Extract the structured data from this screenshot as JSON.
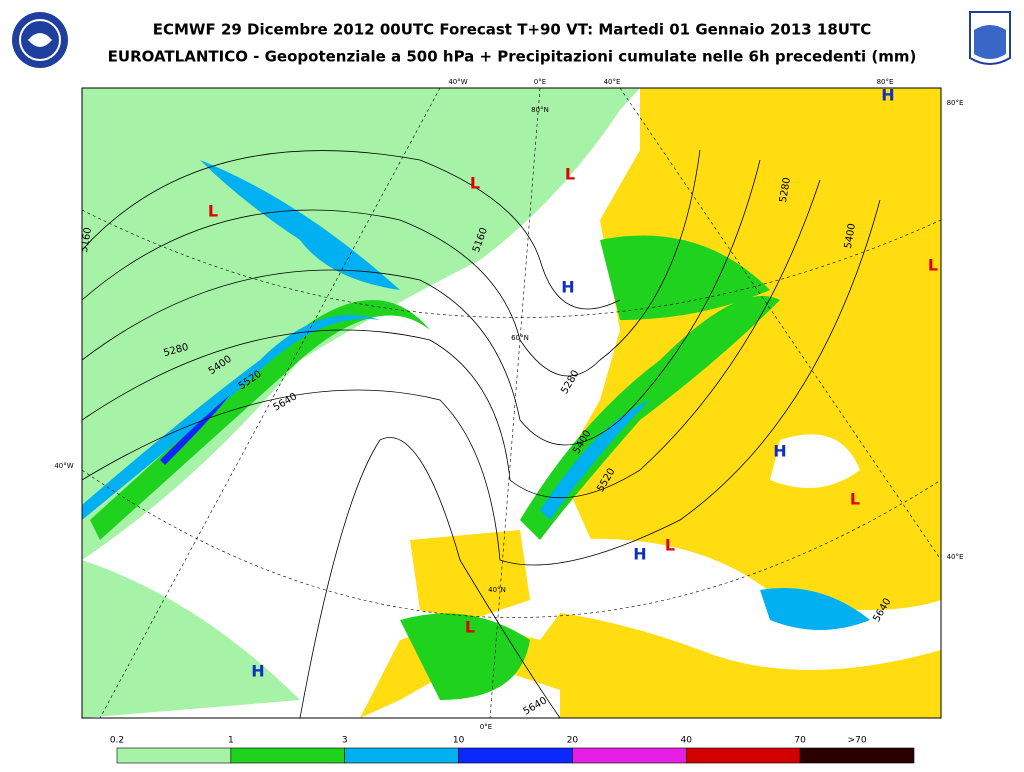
{
  "header": {
    "title": "ECMWF 29 Dicembre 2012 00UTC Forecast T+90 VT: Martedi 01 Gennaio 2013 18UTC",
    "subtitle": "EUROATLANTICO - Geopotenziale a 500 hPa + Precipitazioni cumulate nelle 6h precedenti (mm)"
  },
  "map": {
    "graticule_labels": [
      "40°W",
      "0°E",
      "40°E",
      "80°E",
      "80°E",
      "40°W",
      "40°E",
      "0°E",
      "80°N",
      "60°N",
      "40°N"
    ],
    "pressure_centers": [
      {
        "label": "L",
        "color": "#e00000"
      },
      {
        "label": "L",
        "color": "#e00000"
      },
      {
        "label": "L",
        "color": "#e00000"
      },
      {
        "label": "H",
        "color": "#1030c0"
      },
      {
        "label": "H",
        "color": "#1030c0"
      },
      {
        "label": "L",
        "color": "#e00000"
      },
      {
        "label": "H",
        "color": "#1030c0"
      },
      {
        "label": "L",
        "color": "#e00000"
      },
      {
        "label": "H",
        "color": "#1030c0"
      },
      {
        "label": "L",
        "color": "#e00000"
      },
      {
        "label": "L",
        "color": "#e00000"
      },
      {
        "label": "H",
        "color": "#1030c0"
      }
    ],
    "contour_labels": [
      "5160",
      "5280",
      "5400",
      "5520",
      "5640",
      "5160",
      "5280",
      "5400",
      "5520",
      "5280",
      "5400",
      "5640",
      "5640"
    ]
  },
  "legend": {
    "labels": [
      "0.2",
      "1",
      "3",
      "10",
      "20",
      "40",
      "70",
      ">70"
    ],
    "colors": [
      "#a6f2a6",
      "#1ed21e",
      "#00b0f0",
      "#0a28ff",
      "#e61ee6",
      "#d20000",
      "#2a0000"
    ]
  }
}
